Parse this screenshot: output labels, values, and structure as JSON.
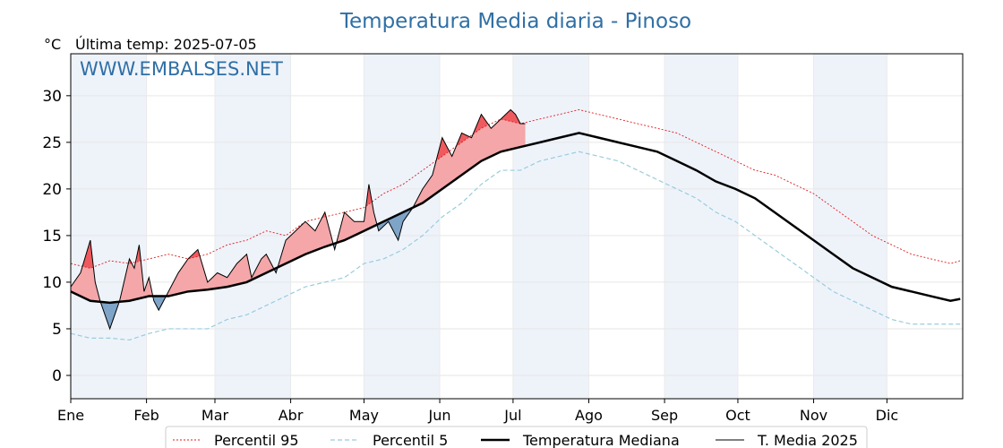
{
  "chart_data": {
    "type": "line",
    "title": "Temperatura Media diaria - Pinoso",
    "ylabel": "°C",
    "subtitle": "Última temp: 2025-07-05",
    "watermark": "WWW.EMBALSES.NET",
    "ylim": [
      -2.5,
      34.5
    ],
    "xlim_day": [
      0,
      365
    ],
    "y_ticks": [
      0,
      5,
      10,
      15,
      20,
      25,
      30
    ],
    "grid": true,
    "legend_position": "bottom-center",
    "months": [
      "Ene",
      "Feb",
      "Mar",
      "Abr",
      "May",
      "Jun",
      "Jul",
      "Ago",
      "Sep",
      "Oct",
      "Nov",
      "Dic"
    ],
    "month_start_day": [
      0,
      31,
      59,
      90,
      120,
      151,
      181,
      212,
      243,
      273,
      304,
      334
    ],
    "shaded_months": [
      0,
      2,
      4,
      6,
      8,
      10
    ],
    "colors": {
      "p95": "#e41a1c",
      "p5": "#99ccdd",
      "median": "#000000",
      "media2025": "#000000",
      "above_fill": "#f4a6a8",
      "above_p95_fill": "#ef5a5e",
      "below_fill": "#7ea4c8",
      "band": "#eef3fa",
      "title": "#2f6fa5"
    },
    "series_names": {
      "p95": "Percentil 95",
      "p5": "Percentil 5",
      "median": "Temperatura Mediana",
      "media2025": "T. Media 2025"
    },
    "series": {
      "p95": {
        "name": "Percentil 95",
        "days": [
          0,
          8,
          16,
          24,
          32,
          40,
          48,
          56,
          64,
          72,
          80,
          88,
          96,
          104,
          112,
          120,
          128,
          136,
          144,
          152,
          160,
          168,
          176,
          184,
          192,
          200,
          208,
          216,
          224,
          232,
          240,
          248,
          256,
          264,
          272,
          280,
          288,
          296,
          304,
          312,
          320,
          328,
          336,
          344,
          352,
          360,
          364
        ],
        "values": [
          12.0,
          11.5,
          12.3,
          12.0,
          12.5,
          13.0,
          12.5,
          13.0,
          14.0,
          14.5,
          15.5,
          15.0,
          16.5,
          17.0,
          17.5,
          18.0,
          19.5,
          20.5,
          22.0,
          23.5,
          25.0,
          26.5,
          27.5,
          27.0,
          27.5,
          28.0,
          28.5,
          28.0,
          27.5,
          27.0,
          26.5,
          26.0,
          25.0,
          24.0,
          23.0,
          22.0,
          21.5,
          20.5,
          19.5,
          18.0,
          16.5,
          15.0,
          14.0,
          13.0,
          12.5,
          12.0,
          12.3
        ]
      },
      "p5": {
        "name": "Percentil 5",
        "days": [
          0,
          8,
          16,
          24,
          32,
          40,
          48,
          56,
          64,
          72,
          80,
          88,
          96,
          104,
          112,
          120,
          128,
          136,
          144,
          152,
          160,
          168,
          176,
          184,
          192,
          200,
          208,
          216,
          224,
          232,
          240,
          248,
          256,
          264,
          272,
          280,
          288,
          296,
          304,
          312,
          320,
          328,
          336,
          344,
          352,
          360,
          364
        ],
        "values": [
          4.5,
          4.0,
          4.0,
          3.8,
          4.5,
          5.0,
          5.0,
          5.0,
          6.0,
          6.5,
          7.5,
          8.5,
          9.5,
          10.0,
          10.5,
          12.0,
          12.5,
          13.5,
          15.0,
          17.0,
          18.5,
          20.5,
          22.0,
          22.0,
          23.0,
          23.5,
          24.0,
          23.5,
          23.0,
          22.0,
          21.0,
          20.0,
          19.0,
          17.5,
          16.5,
          15.0,
          13.5,
          12.0,
          10.5,
          9.0,
          8.0,
          7.0,
          6.0,
          5.5,
          5.5,
          5.5,
          5.5
        ]
      },
      "median": {
        "name": "Temperatura Mediana",
        "days": [
          0,
          8,
          16,
          24,
          32,
          40,
          48,
          56,
          64,
          72,
          80,
          88,
          96,
          104,
          112,
          120,
          128,
          136,
          144,
          152,
          160,
          168,
          176,
          184,
          192,
          200,
          208,
          216,
          224,
          232,
          240,
          248,
          256,
          264,
          272,
          280,
          288,
          296,
          304,
          312,
          320,
          328,
          336,
          344,
          352,
          360,
          364
        ],
        "values": [
          9.0,
          8.0,
          7.8,
          8.0,
          8.5,
          8.5,
          9.0,
          9.2,
          9.5,
          10.0,
          11.0,
          12.0,
          13.0,
          13.8,
          14.5,
          15.5,
          16.5,
          17.5,
          18.5,
          20.0,
          21.5,
          23.0,
          24.0,
          24.5,
          25.0,
          25.5,
          26.0,
          25.5,
          25.0,
          24.5,
          24.0,
          23.0,
          22.0,
          20.8,
          20.0,
          19.0,
          17.5,
          16.0,
          14.5,
          13.0,
          11.5,
          10.5,
          9.5,
          9.0,
          8.5,
          8.0,
          8.2
        ]
      },
      "media2025": {
        "name": "T. Media 2025",
        "days": [
          0,
          4,
          8,
          10,
          12,
          16,
          20,
          24,
          26,
          28,
          30,
          32,
          34,
          36,
          40,
          44,
          48,
          52,
          56,
          60,
          64,
          68,
          72,
          74,
          78,
          80,
          84,
          88,
          92,
          96,
          100,
          104,
          108,
          112,
          116,
          120,
          122,
          124,
          126,
          130,
          134,
          136,
          140,
          144,
          148,
          152,
          156,
          160,
          164,
          168,
          172,
          176,
          180,
          182,
          184,
          186
        ],
        "values": [
          9.5,
          11.0,
          14.5,
          10.0,
          8.0,
          5.0,
          8.0,
          12.5,
          11.5,
          14.0,
          9.0,
          10.5,
          8.0,
          7.0,
          9.0,
          11.0,
          12.5,
          13.5,
          10.0,
          11.0,
          10.5,
          12.0,
          13.0,
          10.5,
          12.5,
          13.0,
          11.0,
          14.5,
          15.5,
          16.5,
          15.5,
          17.5,
          13.5,
          17.5,
          16.5,
          16.5,
          20.5,
          17.5,
          15.5,
          16.5,
          14.5,
          16.5,
          18.0,
          20.0,
          21.5,
          25.5,
          23.5,
          26.0,
          25.5,
          28.0,
          26.5,
          27.5,
          28.5,
          28.0,
          27.0,
          27.0
        ]
      }
    }
  }
}
